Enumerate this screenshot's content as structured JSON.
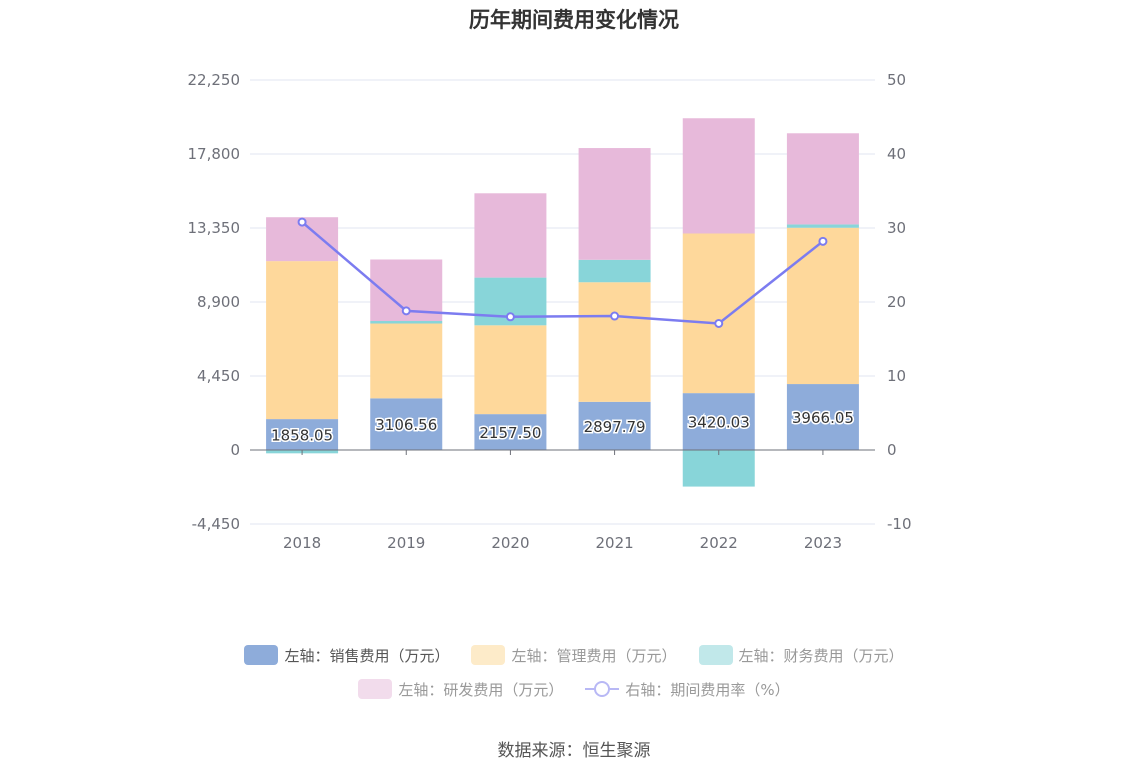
{
  "chart_data": {
    "type": "bar",
    "title": "历年期间费用变化情况",
    "categories": [
      "2018",
      "2019",
      "2020",
      "2021",
      "2022",
      "2023"
    ],
    "series": [
      {
        "name": "左轴：销售费用（万元）",
        "axis": "left",
        "color": "#8eacda",
        "values": [
          1858.05,
          3106.56,
          2157.5,
          2897.79,
          3420.03,
          3966.05
        ]
      },
      {
        "name": "左轴：管理费用（万元）",
        "axis": "left",
        "color": "#fed89b",
        "values": [
          9500,
          4500,
          5340,
          7190,
          9600,
          9400
        ]
      },
      {
        "name": "左轴：财务费用（万元）",
        "axis": "left",
        "color": "#88d5d9",
        "values": [
          -200,
          150,
          2870,
          1350,
          -2200,
          200
        ]
      },
      {
        "name": "左轴：研发费用（万元）",
        "axis": "left",
        "color": "#e7b9da",
        "values": [
          2640,
          3700,
          5070,
          6720,
          6930,
          5480
        ]
      },
      {
        "name": "右轴：期间费用率（%）",
        "axis": "right",
        "type": "line",
        "color": "#7c7cf0",
        "values": [
          30.8,
          18.8,
          18.0,
          18.1,
          17.1,
          28.2
        ]
      }
    ],
    "data_labels": [
      "1858.05",
      "3106.56",
      "2157.50",
      "2897.79",
      "3420.03",
      "3966.05"
    ],
    "y_left": {
      "ticks": [
        "22,250",
        "17,800",
        "13,350",
        "8,900",
        "4,450",
        "0",
        "-4,450"
      ],
      "ylim": [
        -4450,
        22250
      ]
    },
    "y_right": {
      "ticks": [
        "50",
        "40",
        "30",
        "20",
        "10",
        "0",
        "-10"
      ],
      "ylim": [
        -10,
        50
      ]
    },
    "legend": {
      "position": "bottom",
      "dimmed": [
        false,
        true,
        true,
        true,
        true
      ]
    }
  },
  "source": "数据来源：恒生聚源"
}
